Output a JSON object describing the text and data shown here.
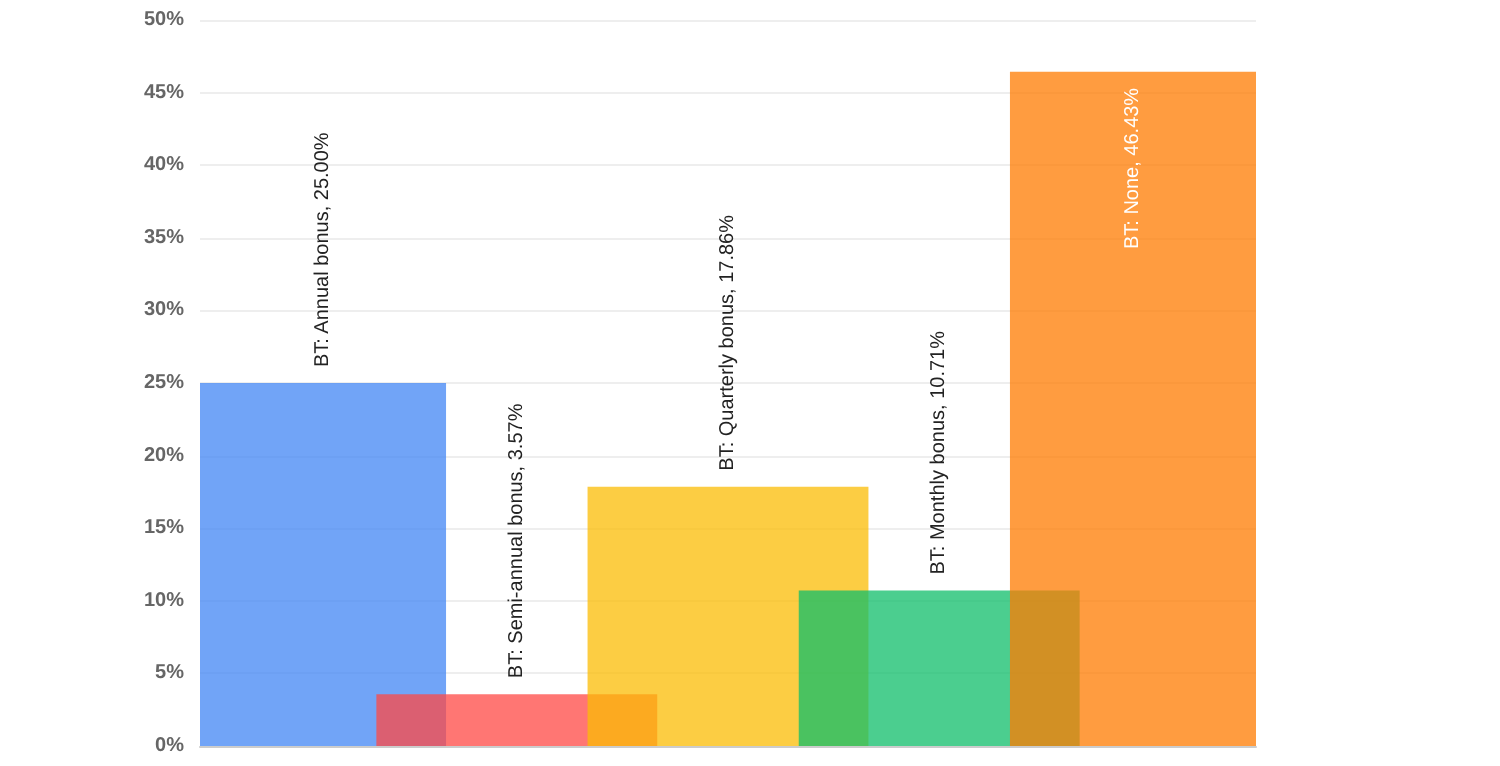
{
  "chart_data": {
    "type": "bar",
    "categories": [
      null,
      null,
      null,
      null,
      null
    ],
    "values": [
      25.0,
      3.57,
      17.86,
      10.71,
      46.43
    ],
    "colors": [
      "#4285f4",
      "#ff4844",
      "#fbbc04",
      "#0fbd6a",
      "#ff7b00"
    ],
    "value_labels": [
      "BT: Annual bonus, 25.00%",
      "BT: Semi-annual bonus, 3.57%",
      "BT: Quarterly bonus, 17.86%",
      "BT: Monthly bonus, 10.71%",
      "BT: None, 46.43%"
    ],
    "ylim": [
      0,
      50
    ],
    "yticks": [
      {
        "value": 0,
        "label": "0%"
      },
      {
        "value": 5,
        "label": "5%"
      },
      {
        "value": 10,
        "label": "10%"
      },
      {
        "value": 15,
        "label": "15%"
      },
      {
        "value": 20,
        "label": "20%"
      },
      {
        "value": 25,
        "label": "25%"
      },
      {
        "value": 30,
        "label": "30%"
      },
      {
        "value": 35,
        "label": "35%"
      },
      {
        "value": 40,
        "label": "40%"
      },
      {
        "value": 45,
        "label": "45%"
      },
      {
        "value": 50,
        "label": "50%"
      }
    ],
    "grid": "y"
  }
}
